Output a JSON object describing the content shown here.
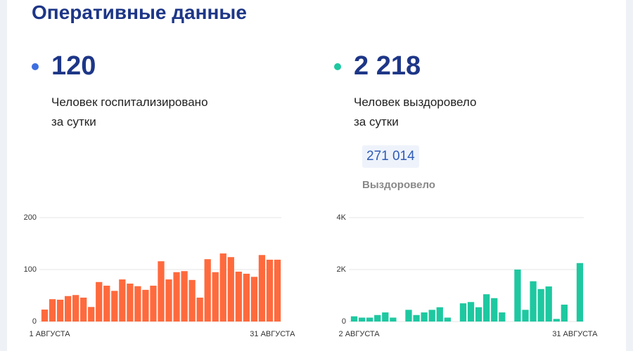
{
  "title": "Оперативные данные",
  "stats": [
    {
      "value": "120",
      "text": [
        "Человек госпитализировано",
        "за сутки"
      ]
    },
    {
      "value": "2 218",
      "text": [
        "Человек выздоровело",
        "за сутки"
      ],
      "total": "271 014",
      "total_label": "Выздоровело"
    }
  ],
  "chart_data": [
    {
      "type": "bar",
      "color": "#ff6a3d",
      "categories": [
        "1 АВГУСТА",
        null,
        null,
        null,
        null,
        null,
        null,
        null,
        null,
        null,
        null,
        null,
        null,
        null,
        null,
        null,
        null,
        null,
        null,
        null,
        null,
        null,
        null,
        null,
        null,
        null,
        null,
        null,
        null,
        null,
        "31 АВГУСТА"
      ],
      "values": [
        23,
        43,
        42,
        49,
        51,
        46,
        28,
        76,
        69,
        59,
        81,
        73,
        68,
        61,
        69,
        116,
        81,
        95,
        97,
        80,
        46,
        120,
        95,
        131,
        124,
        96,
        92,
        86,
        128,
        119,
        119
      ],
      "ylim": [
        0,
        200
      ],
      "yticks": [
        0,
        100,
        200
      ],
      "grid": true
    },
    {
      "type": "bar",
      "color": "#1ec8a0",
      "categories": [
        "2 АВГУСТА",
        null,
        null,
        null,
        null,
        null,
        null,
        null,
        null,
        null,
        null,
        null,
        null,
        null,
        null,
        null,
        null,
        null,
        null,
        null,
        null,
        null,
        null,
        null,
        null,
        null,
        null,
        null,
        null,
        "31 АВГУСТА"
      ],
      "values": [
        200,
        150,
        150,
        250,
        350,
        150,
        0,
        450,
        250,
        350,
        450,
        550,
        150,
        0,
        700,
        750,
        550,
        1050,
        900,
        350,
        0,
        2000,
        450,
        1550,
        1250,
        1350,
        100,
        650,
        0,
        2250
      ],
      "ylim": [
        0,
        4000
      ],
      "yticks": [
        0,
        {
          "value": 2000,
          "label": "2K"
        },
        {
          "value": 4000,
          "label": "4K"
        }
      ],
      "grid": true
    }
  ]
}
